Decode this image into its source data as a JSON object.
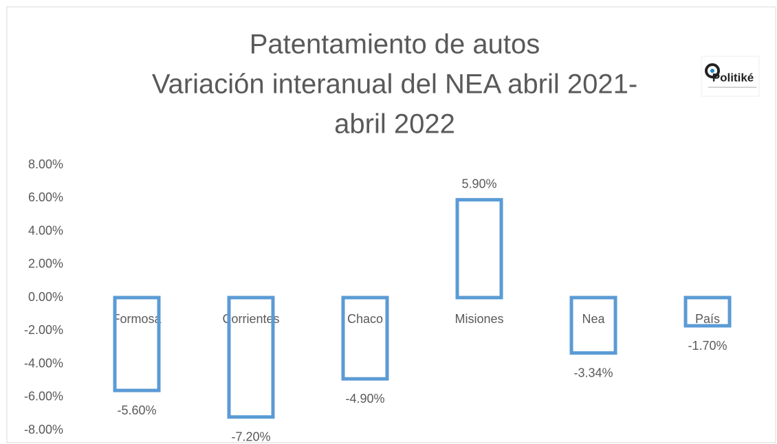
{
  "chart_data": {
    "type": "bar",
    "title_lines": [
      "Patentamiento de autos",
      "Variación interanual del NEA abril 2021-",
      "abril 2022"
    ],
    "logo": "Politiké",
    "categories": [
      "Formosa",
      "Corrientes",
      "Chaco",
      "Misiones",
      "Nea",
      "País"
    ],
    "values": [
      -5.6,
      -7.2,
      -4.9,
      5.9,
      -3.34,
      -1.7
    ],
    "value_labels": [
      "-5.60%",
      "-7.20%",
      "-4.90%",
      "5.90%",
      "-3.34%",
      "-1.70%"
    ],
    "color": "#5b9bd5",
    "ylim": [
      -8,
      8
    ],
    "yticks": [
      {
        "value": 8,
        "label": "8.00%"
      },
      {
        "value": 6,
        "label": "6.00%"
      },
      {
        "value": 4,
        "label": "4.00%"
      },
      {
        "value": 2,
        "label": "2.00%"
      },
      {
        "value": 0,
        "label": "0.00%"
      },
      {
        "value": -2,
        "label": "-2.00%"
      },
      {
        "value": -4,
        "label": "-4.00%"
      },
      {
        "value": -6,
        "label": "-6.00%"
      },
      {
        "value": -8,
        "label": "-8.00%"
      }
    ],
    "grid": false
  }
}
